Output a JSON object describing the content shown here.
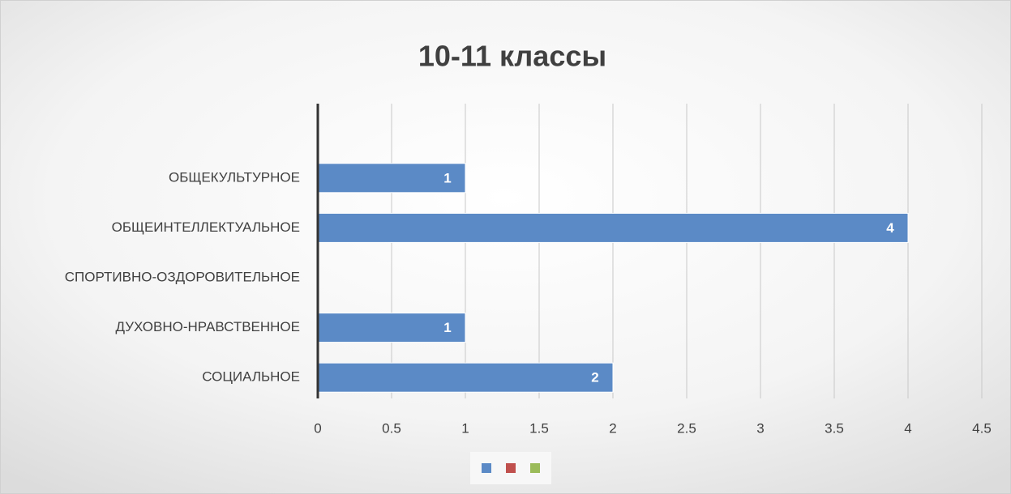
{
  "chart_data": {
    "type": "hbar",
    "title": "10-11 классы",
    "categories": [
      "ОБЩЕКУЛЬТУРНОЕ",
      "ОБЩЕИНТЕЛЛЕКТУАЛЬНОЕ",
      "СПОРТИВНО-ОЗДОРОВИТЕЛЬНОЕ",
      "ДУХОВНО-НРАВСТВЕННОЕ",
      "СОЦИАЛЬНОЕ"
    ],
    "series": [
      {
        "color": "#5b8ac6",
        "values": [
          1,
          4,
          null,
          1,
          2
        ]
      },
      {
        "color": "#c0504d",
        "values": [
          null,
          null,
          null,
          null,
          null
        ]
      },
      {
        "color": "#9bbb59",
        "values": [
          null,
          null,
          null,
          null,
          null
        ]
      }
    ],
    "xlim": [
      0,
      4.5
    ],
    "xticks": [
      0,
      0.5,
      1,
      1.5,
      2,
      2.5,
      3,
      3.5,
      4,
      4.5
    ],
    "grid": true
  }
}
